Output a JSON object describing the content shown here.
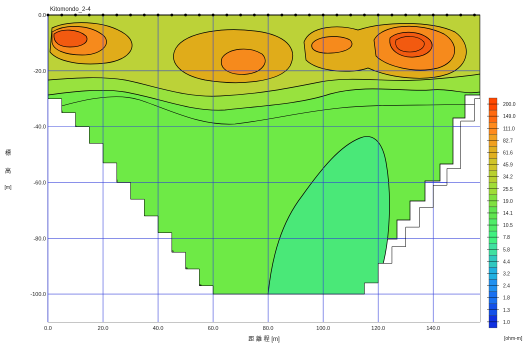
{
  "chart_data": {
    "type": "heatmap",
    "title": "Kitomondo_2-4",
    "xlabel": "距 離 程 [m]",
    "ylabel_chars": [
      "標",
      "高",
      "[m]"
    ],
    "x_ticks": [
      "0.0",
      "20.0",
      "40.0",
      "60.0",
      "80.0",
      "100.0",
      "120.0",
      "140.0"
    ],
    "y_ticks": [
      "0.0",
      "-20.0",
      "-40.0",
      "-60.0",
      "-80.0",
      "-100.0"
    ],
    "x_tick_values": [
      0,
      20,
      40,
      60,
      80,
      100,
      120,
      140
    ],
    "y_tick_values": [
      0,
      -20,
      -40,
      -60,
      -80,
      -100
    ],
    "xlim": [
      0,
      157
    ],
    "ylim": [
      -110,
      0
    ],
    "grid": true,
    "legend_position": "right",
    "legend_unit": "[ohm-m]",
    "legend_levels": [
      "200.0",
      "149.0",
      "111.0",
      "82.7",
      "61.6",
      "45.9",
      "34.2",
      "25.5",
      "19.0",
      "14.1",
      "10.5",
      "7.8",
      "5.8",
      "4.4",
      "3.2",
      "2.4",
      "1.8",
      "1.3",
      "1.0"
    ],
    "legend_colors": [
      "#ff4800",
      "#ff6a10",
      "#ff8a1c",
      "#f0a020",
      "#e0b020",
      "#d0c428",
      "#b8d030",
      "#a0dc38",
      "#80e040",
      "#60e450",
      "#50ec68",
      "#40f080",
      "#40e0a0",
      "#30c8c0",
      "#20b0e0",
      "#2090f0",
      "#1a70f0",
      "#1450e8",
      "#1030e0"
    ],
    "region_colors": {
      "peak": "#f25a10",
      "orange": "#f68a1c",
      "amber": "#e0ac1a",
      "yellow_green": "#bcd238",
      "light_green": "#98e23e",
      "green": "#6eea46",
      "blue_green": "#4ae878"
    },
    "section_profile": [
      [
        0,
        -30
      ],
      [
        5,
        -30
      ],
      [
        5,
        -35
      ],
      [
        10,
        -35
      ],
      [
        10,
        -40
      ],
      [
        15,
        -40
      ],
      [
        15,
        -46
      ],
      [
        20,
        -46
      ],
      [
        20,
        -53
      ],
      [
        25,
        -53
      ],
      [
        25,
        -60
      ],
      [
        30,
        -60
      ],
      [
        30,
        -66
      ],
      [
        35,
        -66
      ],
      [
        35,
        -72
      ],
      [
        40,
        -72
      ],
      [
        40,
        -78
      ],
      [
        45,
        -78
      ],
      [
        45,
        -85
      ],
      [
        50,
        -85
      ],
      [
        50,
        -91
      ],
      [
        55,
        -91
      ],
      [
        55,
        -97
      ],
      [
        60,
        -97
      ],
      [
        60,
        -100
      ],
      [
        115,
        -100
      ],
      [
        115,
        -96
      ],
      [
        120,
        -96
      ],
      [
        120,
        -89
      ],
      [
        125,
        -89
      ],
      [
        125,
        -83
      ],
      [
        130,
        -83
      ],
      [
        130,
        -76
      ],
      [
        135,
        -76
      ],
      [
        135,
        -69
      ],
      [
        140,
        -69
      ],
      [
        140,
        -61
      ],
      [
        145,
        -61
      ],
      [
        145,
        -55
      ],
      [
        150,
        -55
      ],
      [
        150,
        -38
      ],
      [
        155,
        -38
      ],
      [
        155,
        -30
      ],
      [
        157,
        -30
      ]
    ],
    "electrode_x_step": 5
  }
}
